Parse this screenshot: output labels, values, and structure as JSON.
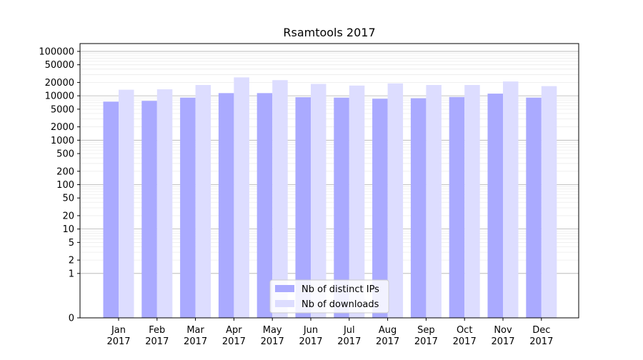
{
  "chart_data": {
    "type": "bar",
    "title": "Rsamtools 2017",
    "xlabel": "",
    "ylabel": "",
    "y_scale": "symlog",
    "ylim": [
      0,
      150000
    ],
    "y_ticks": [
      {
        "value": 0,
        "label": "0"
      },
      {
        "value": 1,
        "label": "1"
      },
      {
        "value": 2,
        "label": "2"
      },
      {
        "value": 5,
        "label": "5"
      },
      {
        "value": 10,
        "label": "10"
      },
      {
        "value": 20,
        "label": "20"
      },
      {
        "value": 50,
        "label": "50"
      },
      {
        "value": 100,
        "label": "100"
      },
      {
        "value": 200,
        "label": "200"
      },
      {
        "value": 500,
        "label": "500"
      },
      {
        "value": 1000,
        "label": "1000"
      },
      {
        "value": 2000,
        "label": "2000"
      },
      {
        "value": 5000,
        "label": "5000"
      },
      {
        "value": 10000,
        "label": "10000"
      },
      {
        "value": 20000,
        "label": "20000"
      },
      {
        "value": 50000,
        "label": "50000"
      },
      {
        "value": 100000,
        "label": "100000"
      }
    ],
    "categories": [
      {
        "month": "Jan",
        "year": "2017"
      },
      {
        "month": "Feb",
        "year": "2017"
      },
      {
        "month": "Mar",
        "year": "2017"
      },
      {
        "month": "Apr",
        "year": "2017"
      },
      {
        "month": "May",
        "year": "2017"
      },
      {
        "month": "Jun",
        "year": "2017"
      },
      {
        "month": "Jul",
        "year": "2017"
      },
      {
        "month": "Aug",
        "year": "2017"
      },
      {
        "month": "Sep",
        "year": "2017"
      },
      {
        "month": "Oct",
        "year": "2017"
      },
      {
        "month": "Nov",
        "year": "2017"
      },
      {
        "month": "Dec",
        "year": "2017"
      }
    ],
    "series": [
      {
        "name": "Nb of distinct IPs",
        "color": "#aaaaff",
        "values": [
          7400,
          7700,
          9100,
          11500,
          11500,
          9300,
          9100,
          8600,
          8800,
          9400,
          11200,
          9100
        ]
      },
      {
        "name": "Nb of downloads",
        "color": "#ddddff",
        "values": [
          13700,
          14000,
          17500,
          26000,
          22500,
          18500,
          17000,
          19000,
          17500,
          17500,
          21000,
          16500
        ]
      }
    ],
    "grid": true,
    "legend_position": "bottom-center"
  }
}
